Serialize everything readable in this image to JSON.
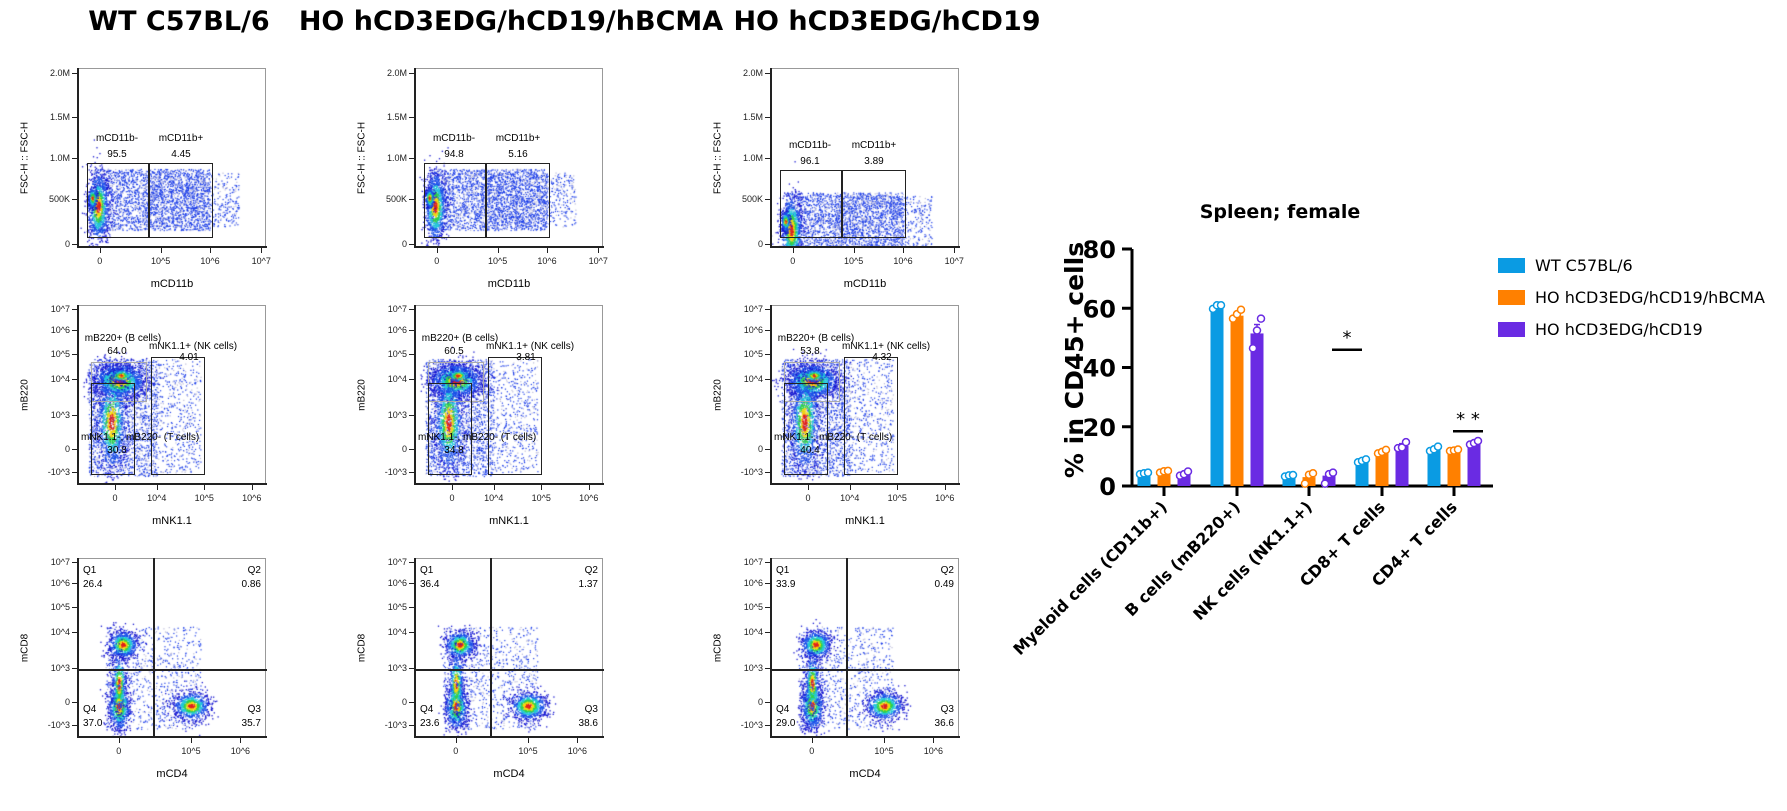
{
  "columns": [
    {
      "title": "WT C57BL/6"
    },
    {
      "title": "HO hCD3EDG/hCD19/hBCMA"
    },
    {
      "title": "HO hCD3EDG/hCD19"
    }
  ],
  "flow_rows": [
    {
      "y_label": "FSC-H :: FSC-H",
      "x_label": "mCD11b",
      "y_ticks": [
        "2.0M",
        "1.5M",
        "1.0M",
        "500K",
        "0"
      ],
      "x_ticks": [
        "0",
        "10^5",
        "10^6",
        "10^7"
      ],
      "gates": [
        "mCD11b-",
        "mCD11b+"
      ]
    },
    {
      "y_label": "mB220",
      "x_label": "mNK1.1",
      "y_ticks": [
        "10^7",
        "10^6",
        "10^5",
        "10^4",
        "10^3",
        "0",
        "-10^3"
      ],
      "x_ticks": [
        "0",
        "10^4",
        "10^5",
        "10^6"
      ],
      "gates": [
        "mB220+ (B cells)",
        "mNK1.1+ (NK cells)",
        "mNK1.1-, mB220- (T cells)"
      ]
    },
    {
      "y_label": "mCD8",
      "x_label": "mCD4",
      "y_ticks": [
        "10^7",
        "10^6",
        "10^5",
        "10^4",
        "10^3",
        "0",
        "-10^3"
      ],
      "x_ticks": [
        "0",
        "10^5",
        "10^6"
      ],
      "gates": [
        "Q1",
        "Q2",
        "Q4",
        "Q3"
      ]
    }
  ],
  "flow_values": [
    [
      [
        "95.5",
        "4.45"
      ],
      [
        "64.0",
        "4.01",
        "30.8"
      ],
      [
        "26.4",
        "0.86",
        "37.0",
        "35.7"
      ]
    ],
    [
      [
        "94.8",
        "5.16"
      ],
      [
        "60.5",
        "3.81",
        "34.8"
      ],
      [
        "36.4",
        "1.37",
        "23.6",
        "38.6"
      ]
    ],
    [
      [
        "96.1",
        "3.89"
      ],
      [
        "53.8",
        "4.32",
        "40.4"
      ],
      [
        "33.9",
        "0.49",
        "29.0",
        "36.6"
      ]
    ]
  ],
  "chart_data": {
    "type": "bar",
    "title": "Spleen; female",
    "ylabel": "% in CD45+ cells",
    "xlabel": "",
    "ylim": [
      0,
      80
    ],
    "yticks": [
      "0",
      "20",
      "40",
      "60",
      "80"
    ],
    "grid": false,
    "legend_position": "right",
    "categories": [
      "Myeloid cells (CD11b+)",
      "B cells (mB220+)",
      "NK cells (NK1.1+)",
      "CD8+ T cells",
      "CD4+ T cells"
    ],
    "series": [
      {
        "name": "WT C57BL/6",
        "color": "#0A9BE3",
        "values": [
          4.3,
          60.5,
          3.5,
          8.5,
          12.5
        ],
        "errors": [
          0.3,
          0.6,
          0.3,
          0.5,
          0.6
        ],
        "points": [
          [
            4.0,
            4.3,
            4.5
          ],
          [
            59.8,
            61.0,
            61.0
          ],
          [
            3.2,
            3.6,
            3.7
          ],
          [
            8.0,
            8.5,
            9.0
          ],
          [
            11.8,
            12.4,
            13.3
          ]
        ]
      },
      {
        "name": "HO hCD3EDG/hCD19/hBCMA",
        "color": "#FF8000",
        "values": [
          4.8,
          57.5,
          3.0,
          11.5,
          12.0
        ],
        "errors": [
          0.3,
          0.8,
          0.8,
          0.6,
          0.3
        ],
        "points": [
          [
            4.5,
            5.0,
            5.1
          ],
          [
            56.5,
            58.0,
            59.5
          ],
          [
            0.8,
            3.8,
            4.3
          ],
          [
            11.0,
            11.5,
            12.2
          ],
          [
            11.8,
            12.0,
            12.3
          ]
        ]
      },
      {
        "name": "HO hCD3EDG/hCD19",
        "color": "#6A2BE3",
        "values": [
          4.0,
          51.5,
          3.5,
          13.5,
          14.5
        ],
        "errors": [
          0.4,
          3.0,
          1.2,
          0.8,
          0.5
        ],
        "points": [
          [
            3.5,
            4.0,
            4.9
          ],
          [
            46.5,
            52.5,
            56.5
          ],
          [
            0.8,
            4.0,
            4.5
          ],
          [
            12.8,
            13.0,
            14.8
          ],
          [
            14.0,
            14.5,
            15.2
          ]
        ]
      }
    ],
    "annotations": [
      {
        "text": "*",
        "category": "NK cells (NK1.1+)",
        "y": 46
      },
      {
        "text": "* *",
        "category": "CD4+ T cells",
        "y": 18.5
      }
    ]
  }
}
